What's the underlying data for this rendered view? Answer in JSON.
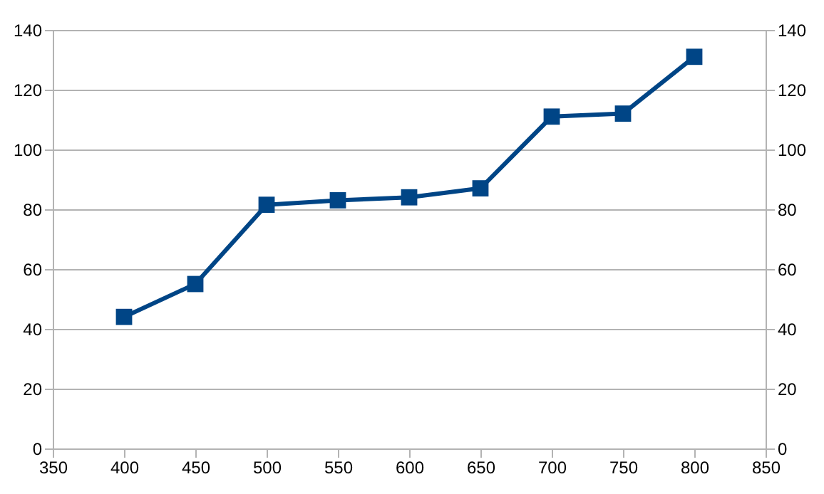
{
  "chart_data": {
    "type": "line",
    "x": [
      400,
      450,
      500,
      550,
      600,
      650,
      700,
      750,
      800
    ],
    "series": [
      {
        "color": "#004586",
        "values": [
          44,
          55,
          81.5,
          83,
          84,
          87,
          111,
          112,
          131
        ]
      }
    ],
    "xlim": [
      350,
      850
    ],
    "xticks": [
      350,
      400,
      450,
      500,
      550,
      600,
      650,
      700,
      750,
      800,
      850
    ],
    "ylim": [
      0,
      140
    ],
    "yticks": [
      0,
      20,
      40,
      60,
      80,
      100,
      120,
      140
    ],
    "y2lim": [
      0,
      140
    ],
    "y2ticks": [
      0,
      20,
      40,
      60,
      80,
      100,
      120,
      140
    ],
    "grid": "y",
    "marker": "square",
    "line_style": "solid"
  }
}
